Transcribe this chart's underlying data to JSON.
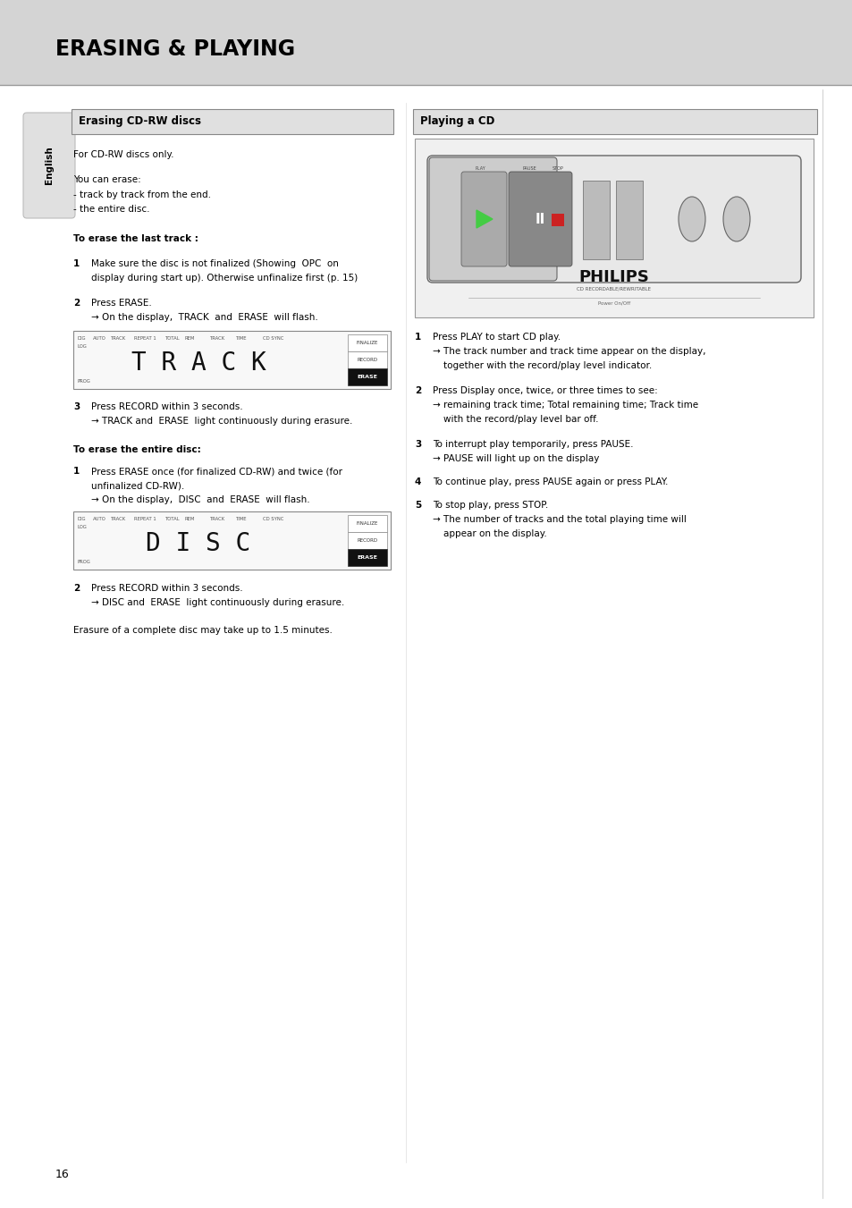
{
  "page_bg": "#ffffff",
  "header_bg": "#d4d4d4",
  "header_text": "ERASING & PLAYING",
  "header_text_color": "#000000",
  "sidebar_bg": "#e0e0e0",
  "sidebar_text": "English",
  "left_section_title": "Erasing CD-RW discs",
  "right_section_title": "Playing a CD",
  "section_title_bg": "#e0e0e0",
  "page_number": "16",
  "font_size": 7.5,
  "bold_font_size": 7.5,
  "header_font_size": 17
}
